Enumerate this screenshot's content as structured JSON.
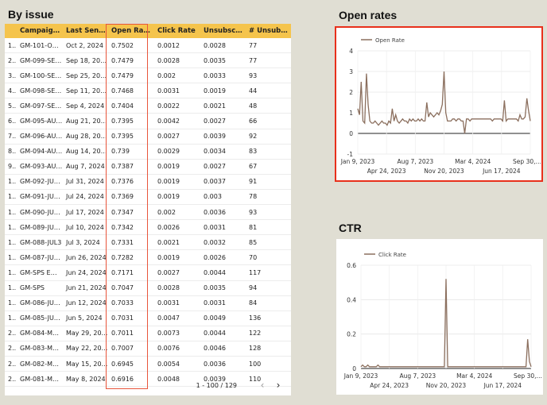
{
  "titles": {
    "by_issue": "By issue",
    "open_rates": "Open rates",
    "ctr": "CTR"
  },
  "table": {
    "columns": [
      "",
      "Campaig…",
      "Last Sen…",
      "Open Ra…",
      "Click Rate",
      "Unsubsc…",
      "# Unsub…"
    ],
    "rows": [
      [
        "1..",
        "GM-101-O…",
        "Oct 2, 2024",
        "0.7502",
        "0.0012",
        "0.0028",
        "77"
      ],
      [
        "2..",
        "GM-099-SE…",
        "Sep 18, 2024",
        "0.7479",
        "0.0028",
        "0.0035",
        "77"
      ],
      [
        "3..",
        "GM-100-SE…",
        "Sep 25, 2024",
        "0.7479",
        "0.002",
        "0.0033",
        "93"
      ],
      [
        "4..",
        "GM-098-SE…",
        "Sep 11, 2024",
        "0.7468",
        "0.0031",
        "0.0019",
        "44"
      ],
      [
        "5..",
        "GM-097-SE…",
        "Sep 4, 2024",
        "0.7404",
        "0.0022",
        "0.0021",
        "48"
      ],
      [
        "6..",
        "GM-095-AU…",
        "Aug 21, 2024",
        "0.7395",
        "0.0042",
        "0.0027",
        "66"
      ],
      [
        "7..",
        "GM-096-AU…",
        "Aug 28, 2024",
        "0.7395",
        "0.0027",
        "0.0039",
        "92"
      ],
      [
        "8..",
        "GM-094-AU…",
        "Aug 14, 2024",
        "0.739",
        "0.0029",
        "0.0034",
        "83"
      ],
      [
        "9..",
        "GM-093-AU…",
        "Aug 7, 2024",
        "0.7387",
        "0.0019",
        "0.0027",
        "67"
      ],
      [
        "1..",
        "GM-092-JU…",
        "Jul 31, 2024",
        "0.7376",
        "0.0019",
        "0.0037",
        "91"
      ],
      [
        "1..",
        "GM-091-JU…",
        "Jul 24, 2024",
        "0.7369",
        "0.0019",
        "0.003",
        "78"
      ],
      [
        "1..",
        "GM-090-JU…",
        "Jul 17, 2024",
        "0.7347",
        "0.002",
        "0.0036",
        "93"
      ],
      [
        "1..",
        "GM-089-JU…",
        "Jul 10, 2024",
        "0.7342",
        "0.0026",
        "0.0031",
        "81"
      ],
      [
        "1..",
        "GM-088-JUL3",
        "Jul 3, 2024",
        "0.7331",
        "0.0021",
        "0.0032",
        "85"
      ],
      [
        "1..",
        "GM-087-JU…",
        "Jun 26, 2024",
        "0.7282",
        "0.0019",
        "0.0026",
        "70"
      ],
      [
        "1..",
        "GM-SPS Em…",
        "Jun 24, 2024",
        "0.7171",
        "0.0027",
        "0.0044",
        "117"
      ],
      [
        "1..",
        "GM-SPS",
        "Jun 21, 2024",
        "0.7047",
        "0.0028",
        "0.0035",
        "94"
      ],
      [
        "1..",
        "GM-086-JU…",
        "Jun 12, 2024",
        "0.7033",
        "0.0031",
        "0.0031",
        "84"
      ],
      [
        "1..",
        "GM-085-JU…",
        "Jun 5, 2024",
        "0.7031",
        "0.0047",
        "0.0049",
        "136"
      ],
      [
        "2..",
        "GM-084-M…",
        "May 29, 2024",
        "0.7011",
        "0.0073",
        "0.0044",
        "122"
      ],
      [
        "2..",
        "GM-083-M…",
        "May 22, 2024",
        "0.7007",
        "0.0076",
        "0.0046",
        "128"
      ],
      [
        "2..",
        "GM-082-M…",
        "May 15, 2024",
        "0.6945",
        "0.0054",
        "0.0036",
        "100"
      ],
      [
        "2..",
        "GM-081-M…",
        "May 8, 2024",
        "0.6916",
        "0.0048",
        "0.0039",
        "110"
      ]
    ],
    "pager_text": "1 - 100 / 129",
    "highlight_color": "#e8553b"
  },
  "icons": {
    "prev": "chevron-left-icon",
    "next": "chevron-right-icon"
  },
  "chart_data": [
    {
      "type": "line",
      "title": "Open rates",
      "series": [
        {
          "name": "Open Rate",
          "color": "#8b6f5e"
        }
      ],
      "x_tick_labels_top": [
        "Jan 9, 2023",
        "Aug 7, 2023",
        "Mar 4, 2024",
        "Sep 30,…"
      ],
      "x_tick_labels_bottom": [
        "Apr 24, 2023",
        "Nov 20, 2023",
        "Jun 17, 2024"
      ],
      "ylim": [
        -1,
        4
      ],
      "y_ticks": [
        4,
        3,
        2,
        1,
        0,
        -1
      ],
      "values": [
        1.2,
        0.9,
        2.5,
        0.6,
        0.5,
        2.9,
        1.4,
        0.6,
        0.5,
        0.5,
        0.6,
        0.5,
        0.4,
        0.5,
        0.6,
        0.5,
        0.5,
        0.4,
        0.6,
        0.5,
        1.2,
        0.6,
        0.9,
        0.6,
        0.5,
        0.6,
        0.7,
        0.6,
        0.6,
        0.5,
        0.7,
        0.6,
        0.7,
        0.6,
        0.6,
        0.7,
        0.6,
        0.7,
        0.6,
        0.6,
        1.5,
        0.8,
        1.0,
        0.9,
        0.8,
        0.9,
        1.0,
        0.9,
        1.1,
        1.4,
        3.0,
        1.0,
        0.6,
        0.6,
        0.6,
        0.7,
        0.7,
        0.6,
        0.7,
        0.7,
        0.6,
        0.6,
        0.0,
        0.7,
        0.7,
        0.6,
        0.7,
        0.7,
        0.7,
        0.7,
        0.7,
        0.7,
        0.7,
        0.7,
        0.7,
        0.7,
        0.7,
        0.7,
        0.6,
        0.7,
        0.7,
        0.7,
        0.7,
        0.7,
        0.6,
        1.6,
        0.6,
        0.7,
        0.7,
        0.7,
        0.7,
        0.7,
        0.7,
        0.6,
        0.9,
        0.7,
        0.7,
        0.8,
        1.7,
        1.1,
        0.6
      ],
      "grid": true,
      "legend": "top-left"
    },
    {
      "type": "line",
      "title": "CTR",
      "series": [
        {
          "name": "Click Rate",
          "color": "#8b6f5e"
        }
      ],
      "x_tick_labels_top": [
        "Jan 9, 2023",
        "Aug 7, 2023",
        "Mar 4, 2024",
        "Sep 30,…"
      ],
      "x_tick_labels_bottom": [
        "Apr 24, 2023",
        "Nov 20, 2023",
        "Jun 17, 2024"
      ],
      "ylim": [
        0,
        0.6
      ],
      "y_ticks": [
        0.6,
        0.4,
        0.2,
        0
      ],
      "values": [
        0.01,
        0.02,
        0.01,
        0.01,
        0.02,
        0.01,
        0.01,
        0.01,
        0.01,
        0.01,
        0.02,
        0.01,
        0.01,
        0.01,
        0.01,
        0.01,
        0.01,
        0.01,
        0.01,
        0.01,
        0.01,
        0.01,
        0.01,
        0.01,
        0.01,
        0.01,
        0.01,
        0.01,
        0.01,
        0.01,
        0.01,
        0.01,
        0.01,
        0.01,
        0.01,
        0.01,
        0.01,
        0.01,
        0.01,
        0.01,
        0.01,
        0.01,
        0.01,
        0.01,
        0.01,
        0.01,
        0.01,
        0.01,
        0.01,
        0.01,
        0.52,
        0.01,
        0.01,
        0.01,
        0.01,
        0.01,
        0.01,
        0.01,
        0.01,
        0.01,
        0.01,
        0.01,
        0.01,
        0.01,
        0.01,
        0.01,
        0.01,
        0.01,
        0.01,
        0.01,
        0.01,
        0.01,
        0.01,
        0.01,
        0.01,
        0.01,
        0.01,
        0.01,
        0.01,
        0.01,
        0.01,
        0.01,
        0.01,
        0.01,
        0.01,
        0.01,
        0.01,
        0.01,
        0.01,
        0.01,
        0.01,
        0.01,
        0.01,
        0.01,
        0.01,
        0.01,
        0.01,
        0.01,
        0.17,
        0.04,
        0.01
      ],
      "grid": true,
      "legend": "top-left"
    }
  ]
}
